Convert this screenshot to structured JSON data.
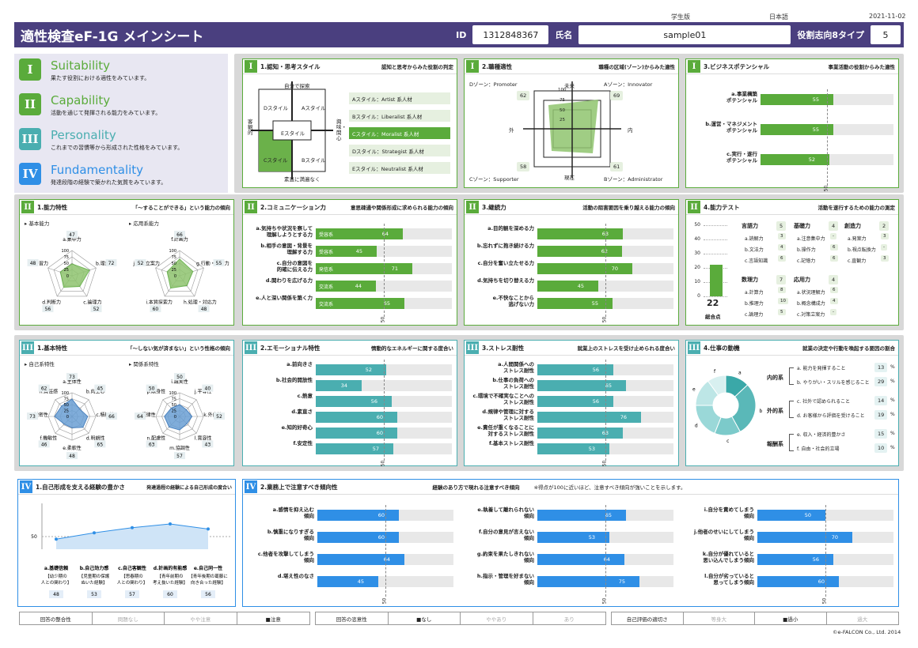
{
  "meta": {
    "edition": "学生版",
    "language": "日本語",
    "date": "2021-11-02"
  },
  "header": {
    "title": "適性検査eF-1G メインシート",
    "id_label": "ID",
    "id_value": "1312848367",
    "name_label": "氏名",
    "name_value": "sample01",
    "type_label": "役割志向8タイプ",
    "type_value": "5"
  },
  "legend": [
    {
      "num": "I",
      "en": "Suitability",
      "jp": "果たす役割における適性をみています。"
    },
    {
      "num": "II",
      "en": "Capability",
      "jp": "活動を通じて発揮される能力をみています。"
    },
    {
      "num": "III",
      "en": "Personality",
      "jp": "これまでの習慣等から形成された性格をみています。"
    },
    {
      "num": "IV",
      "en": "Fundamentality",
      "jp": "発達段階の経験で築かれた気質をみています。"
    }
  ],
  "p11": {
    "badge": "I",
    "title": "1.認知・思考スタイル",
    "desc": "認知と思考からみた役割の判定",
    "top": "自分で探索",
    "bottom": "素直に満遍なく",
    "left": "客観的",
    "right": "興味・関心",
    "quad": {
      "d": "Dスタイル",
      "a": "Aスタイル",
      "e": "Eスタイル",
      "c": "Cスタイル",
      "b": "Bスタイル"
    },
    "styles": [
      "Aスタイル：Artist 系人材",
      "Bスタイル：Liberalist 系人材",
      "Cスタイル：Moralist 系人材",
      "Dスタイル：Strategist 系人材",
      "Eスタイル：Neutralist 系人材"
    ]
  },
  "p12": {
    "badge": "I",
    "title": "2.職種適性",
    "desc": "職種の区域(ゾーン)からみた適性",
    "dzone": "Dゾーン：Promoter",
    "azone": "Aゾーン：Innovator",
    "czone": "Cゾーン：Supporter",
    "bzone": "Bゾーン：Administrator",
    "top": "未来",
    "bottom": "現在",
    "left": "外",
    "right": "内",
    "dval": "62",
    "aval": "69",
    "cval": "58",
    "bval": "61",
    "ticks": [
      "100",
      "75",
      "50",
      "25"
    ]
  },
  "p13": {
    "badge": "I",
    "title": "3.ビジネスポテンシャル",
    "desc": "事業活動の役割からみた適性",
    "items": [
      {
        "label": "a.事業構築\nポテンシャル",
        "value": 55
      },
      {
        "label": "b.運営・マネジメント\nポテンシャル",
        "value": 55
      },
      {
        "label": "c.実行・遂行\nポテンシャル",
        "value": 52
      }
    ],
    "axis50": "50"
  },
  "p21": {
    "badge": "II",
    "title": "1.能力特性",
    "desc": "「〜することができる」という能力の傾向",
    "basic": "基本能力",
    "applied": "応用系能力",
    "b_labels": [
      "a.集中力",
      "b.理解力",
      "c.論理力",
      "d.判断力",
      "e.学習力"
    ],
    "b_vals": [
      "47",
      "72",
      "52",
      "56",
      "48"
    ],
    "a_labels": [
      "f.計画力",
      "g.行動・実行力",
      "h.処理・対応力",
      "i.本質探索力",
      "j.対策立案力"
    ],
    "a_vals": [
      "66",
      "55",
      "48",
      "60",
      "52"
    ],
    "ticks": [
      "100",
      "75",
      "50",
      "25",
      "0"
    ]
  },
  "p22": {
    "badge": "II",
    "title": "2.コミュニケーション力",
    "desc": "意思疎通や関係形成に求められる能力の傾向",
    "items": [
      {
        "label": "a.気持ちや状況を察して\n理解しようとする力",
        "tag": "受容系",
        "value": 64
      },
      {
        "label": "b.相手の意図・背景を\n理解する力",
        "tag": "受容系",
        "value": 45
      },
      {
        "label": "c.自分の意図を\n的確に伝える力",
        "tag": "発信系",
        "value": 71
      },
      {
        "label": "d.関わりを広げる力",
        "tag": "交流系",
        "value": 44
      },
      {
        "label": "e.人と深い関係を築く力",
        "tag": "交流系",
        "value": 65
      }
    ],
    "axis50": "50"
  },
  "p23": {
    "badge": "II",
    "title": "3.継続力",
    "desc": "活動の阻害要因を乗り越える能力の傾向",
    "items": [
      {
        "label": "a.目的観を深める力",
        "value": 63
      },
      {
        "label": "b.忘れずに抱き続ける力",
        "value": 62
      },
      {
        "label": "c.自分を奮い立たせる力",
        "value": 70
      },
      {
        "label": "d.気持ちを切り替える力",
        "value": 45
      },
      {
        "label": "e.不快なことから\n逃げない力",
        "value": 55
      }
    ],
    "axis50": "50"
  },
  "p24": {
    "badge": "II",
    "title": "4.能力テスト",
    "desc": "活動を遂行するための能力の測定",
    "ticks": [
      "50",
      "40",
      "30",
      "20",
      "10",
      "0"
    ],
    "total": "22",
    "total_label": "総合点",
    "groups": [
      {
        "name": "言語力",
        "score": "5",
        "items": [
          [
            "a.読解力",
            "3"
          ],
          [
            "b.文法力",
            "4"
          ],
          [
            "c.言語知識",
            "6"
          ]
        ]
      },
      {
        "name": "基礎力",
        "score": "4",
        "items": [
          [
            "a.注意集中力",
            "-"
          ],
          [
            "b.操作力",
            "6"
          ],
          [
            "c.記憶力",
            "6"
          ]
        ]
      },
      {
        "name": "創造力",
        "score": "2",
        "items": [
          [
            "a.発案力",
            "3"
          ],
          [
            "b.視点転換力",
            "-"
          ],
          [
            "c.直観力",
            "3"
          ]
        ]
      },
      {
        "name": "数理力",
        "score": "7",
        "items": [
          [
            "a.計算力",
            "8"
          ],
          [
            "b.推理力",
            "10"
          ],
          [
            "c.論理力",
            "5"
          ]
        ]
      },
      {
        "name": "応用力",
        "score": "4",
        "items": [
          [
            "a.状況理解力",
            "6"
          ],
          [
            "b.概念構成力",
            "4"
          ],
          [
            "c.対策立案力",
            "-"
          ]
        ]
      }
    ]
  },
  "p31": {
    "badge": "III",
    "title": "1.基本特性",
    "desc": "「〜しない気が済まない」という性格の傾向",
    "self": "自己系特性",
    "rel": "関係系特性",
    "s_labels": [
      "a.主体性",
      "b.向上心",
      "c.積極性",
      "d.明朗性",
      "e.柔軟性",
      "f.機敏性",
      "g.緻密性",
      "h.責任感"
    ],
    "s_vals": [
      "73",
      "45",
      "66",
      "65",
      "48",
      "46",
      "73",
      "62"
    ],
    "r_labels": [
      "i.誠実性",
      "j.平等性",
      "k.外向性",
      "l.寛容性",
      "m.協調性",
      "n.配慮性",
      "o.規律性",
      "p.献身性"
    ],
    "r_vals": [
      "50",
      "40",
      "52",
      "43",
      "57",
      "63",
      "64",
      "50"
    ],
    "ticks": [
      "100",
      "75",
      "50",
      "25",
      "0"
    ]
  },
  "p32": {
    "badge": "III",
    "title": "2.エモーショナル特性",
    "desc": "情動的なエネルギーに関する度合い",
    "items": [
      {
        "label": "a.前向きさ",
        "value": 52
      },
      {
        "label": "b.社会的開放性",
        "value": 34
      },
      {
        "label": "c.熱意",
        "value": 56
      },
      {
        "label": "d.素直さ",
        "value": 60
      },
      {
        "label": "e.知的好奇心",
        "value": 60
      },
      {
        "label": "f.安定性",
        "value": 57
      }
    ],
    "axis50": "50"
  },
  "p33": {
    "badge": "III",
    "title": "3.ストレス耐性",
    "desc": "就業上のストレスを受け止められる度合い",
    "items": [
      {
        "label": "a.人間関係への\nストレス耐性",
        "value": 56
      },
      {
        "label": "b.仕事の負荷への\nストレス耐性",
        "value": 65
      },
      {
        "label": "c.環境で不確実なことへの\nストレス耐性",
        "value": 56
      },
      {
        "label": "d.規律や管理に対する\nストレス耐性",
        "value": 76
      },
      {
        "label": "e.責任が重くなることに\n対するストレス耐性",
        "value": 63
      },
      {
        "label": "f.基本ストレス耐性",
        "value": 53
      }
    ],
    "axis50": "50"
  },
  "p34": {
    "badge": "III",
    "title": "4.仕事の動機",
    "desc": "就業の決定や行動を喚起する要因の割合",
    "groups": [
      {
        "name": "内的系",
        "items": [
          [
            "a. 能力を発揮すること",
            "13"
          ],
          [
            "b. やりがい・スリルを感じること",
            "29"
          ]
        ]
      },
      {
        "name": "外的系",
        "items": [
          [
            "c. 社外で認められること",
            "14"
          ],
          [
            "d. お客様から評価を受けること",
            "19"
          ]
        ]
      },
      {
        "name": "報酬系",
        "items": [
          [
            "e. 収入・経済的豊かさ",
            "15"
          ],
          [
            "f. 自由・社会的立場",
            "10"
          ]
        ]
      }
    ],
    "pct": "%",
    "pie_labels": [
      "a",
      "b",
      "c",
      "d",
      "e",
      "f"
    ]
  },
  "p41": {
    "badge": "IV",
    "title": "1.自己形成を支える経験の豊かさ",
    "desc": "発達過程の経験による自己形成の度合い",
    "y50": "50",
    "items": [
      {
        "label": "a.基礎信頼",
        "sub": "【幼少期の\n人との関わり】",
        "value": 48
      },
      {
        "label": "b.自己効力感",
        "sub": "【児童期の保護\nぬいた経験】",
        "value": 53
      },
      {
        "label": "c.自己客観性",
        "sub": "【思春期の\n人との関わり】",
        "value": 57
      },
      {
        "label": "d.計画的有能感",
        "sub": "【青年前期の\n考え抜いた経験】",
        "value": 60
      },
      {
        "label": "e.自己同一性",
        "sub": "【青年後期の葛藤に\n向き合った経験】",
        "value": 56
      }
    ]
  },
  "p42": {
    "badge": "IV",
    "title": "2.業務上で注意すべき傾向性",
    "desc": "経験のあり方で現れる注意すべき傾向",
    "note": "※得点が100に近いほど、注意すべき傾向が強いことを示します。",
    "col1": [
      {
        "label": "a.感情を抑え込む\n傾向",
        "value": 60
      },
      {
        "label": "b.慎重になりすぎる\n傾向",
        "value": 60
      },
      {
        "label": "c.他者を攻撃してしまう\n傾向",
        "value": 64
      },
      {
        "label": "d.堪え性のなさ",
        "value": 45
      }
    ],
    "col2": [
      {
        "label": "e.執着して離れられない\n傾向",
        "value": 65
      },
      {
        "label": "f.自分の意見が言えない\n傾向",
        "value": 53
      },
      {
        "label": "g.約束を果たしきれない\n傾向",
        "value": 64
      },
      {
        "label": "h.指示・管理を好まない\n傾向",
        "value": 75
      }
    ],
    "col3": [
      {
        "label": "i.自分を責めてしまう\n傾向",
        "value": 50
      },
      {
        "label": "j.他者のせいにしてしまう\n傾向",
        "value": 70
      },
      {
        "label": "k.自分が優れていると\n思い込んでしまう傾向",
        "value": 56
      },
      {
        "label": "l.自分が劣っていると\n思ってしまう傾向",
        "value": 60
      }
    ],
    "axis50": "50"
  },
  "footer": {
    "t1": [
      "回答の整合性",
      "問題なし",
      "やや注意",
      "■注意"
    ],
    "t2": [
      "回答の恣意性",
      "■なし",
      "ややあり",
      "あり"
    ],
    "t3": [
      "自己評価の適切さ",
      "等身大",
      "■過小",
      "過大"
    ],
    "copyright": "©e-FALCON Co., Ltd. 2014"
  }
}
